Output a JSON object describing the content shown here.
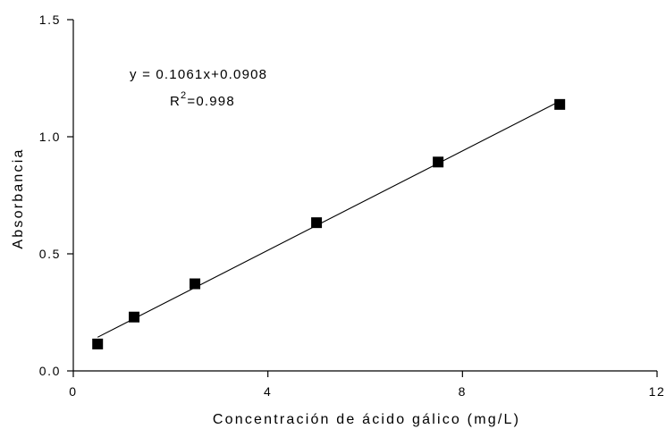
{
  "chart_data": {
    "type": "scatter",
    "xlabel": "Concentración de ácido gálico (mg/L)",
    "ylabel": "Absorbancia",
    "xlim": [
      0,
      12
    ],
    "ylim": [
      0.0,
      1.5
    ],
    "xticks": [
      "0",
      "4",
      "8",
      "12"
    ],
    "yticks": [
      "0.0",
      "0.5",
      "1.0",
      "1.5"
    ],
    "grid": false,
    "points": [
      {
        "x": 0.5,
        "y": 0.115
      },
      {
        "x": 1.25,
        "y": 0.23
      },
      {
        "x": 2.5,
        "y": 0.372
      },
      {
        "x": 5.0,
        "y": 0.633
      },
      {
        "x": 7.5,
        "y": 0.892
      },
      {
        "x": 10.0,
        "y": 1.138
      }
    ],
    "trendline": {
      "slope": 0.1061,
      "intercept": 0.0908,
      "x_range": [
        0.5,
        10.0
      ]
    },
    "annotations": {
      "equation": "y = 0.1061x+0.0908",
      "r2_base": "R",
      "r2_exp": "2",
      "r2_value": "=0.998"
    }
  }
}
